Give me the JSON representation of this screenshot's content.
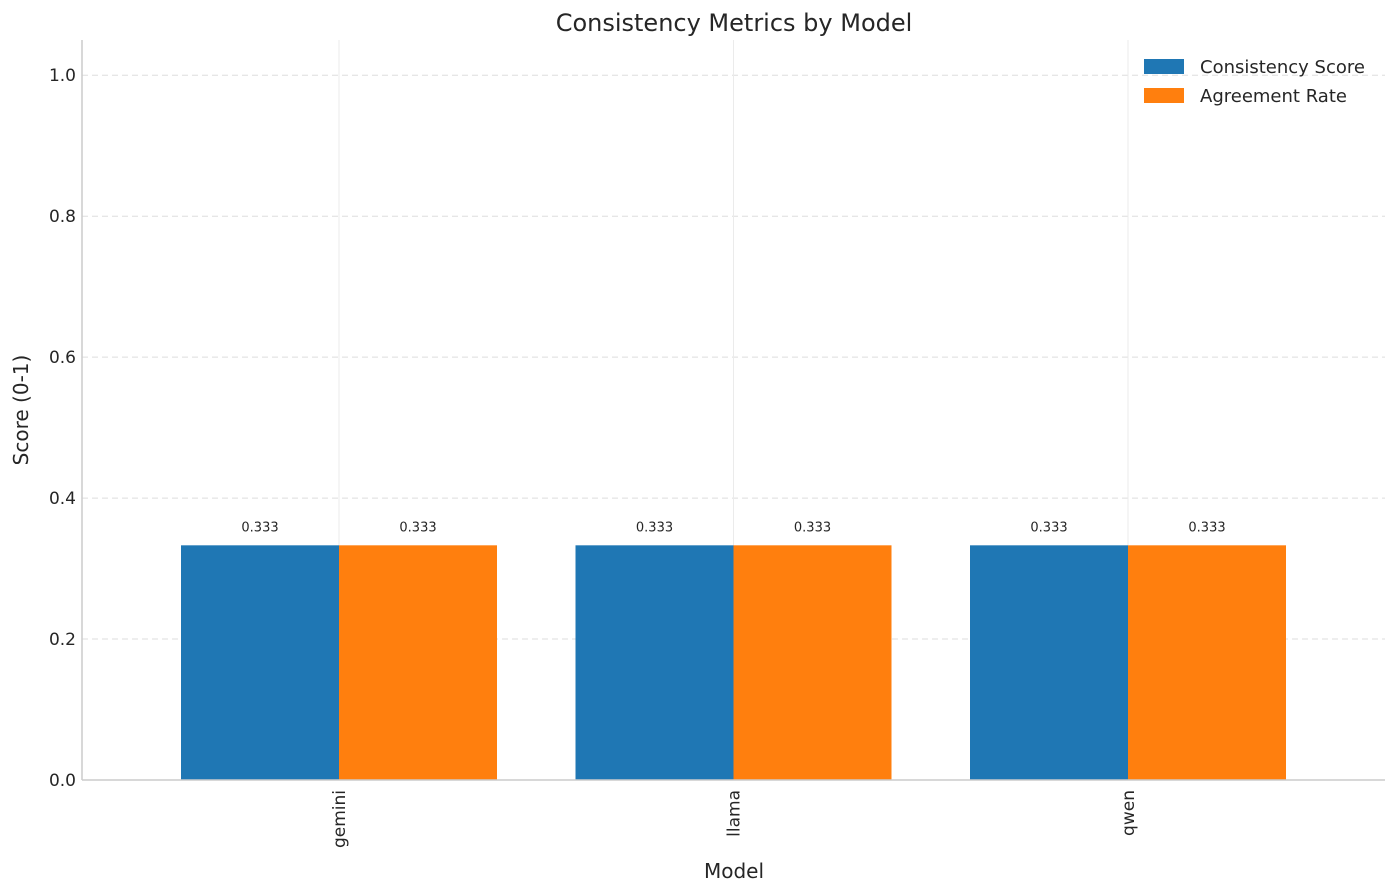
{
  "chart_data": {
    "type": "bar",
    "title": "Consistency Metrics by Model",
    "xlabel": "Model",
    "ylabel": "Score (0-1)",
    "categories": [
      "gemini",
      "llama",
      "qwen"
    ],
    "series": [
      {
        "name": "Consistency Score",
        "color": "#1f77b4",
        "values": [
          0.333,
          0.333,
          0.333
        ]
      },
      {
        "name": "Agreement Rate",
        "color": "#ff7f0e",
        "values": [
          0.333,
          0.333,
          0.333
        ]
      }
    ],
    "data_labels": [
      [
        "0.333",
        "0.333",
        "0.333"
      ],
      [
        "0.333",
        "0.333",
        "0.333"
      ]
    ],
    "ylim": [
      0,
      1.05
    ],
    "yticks": [
      0.0,
      0.2,
      0.4,
      0.6,
      0.8,
      1.0
    ],
    "ytick_labels": [
      "0.0",
      "0.2",
      "0.4",
      "0.6",
      "0.8",
      "1.0"
    ],
    "grid": true,
    "legend_position": "top-right"
  }
}
